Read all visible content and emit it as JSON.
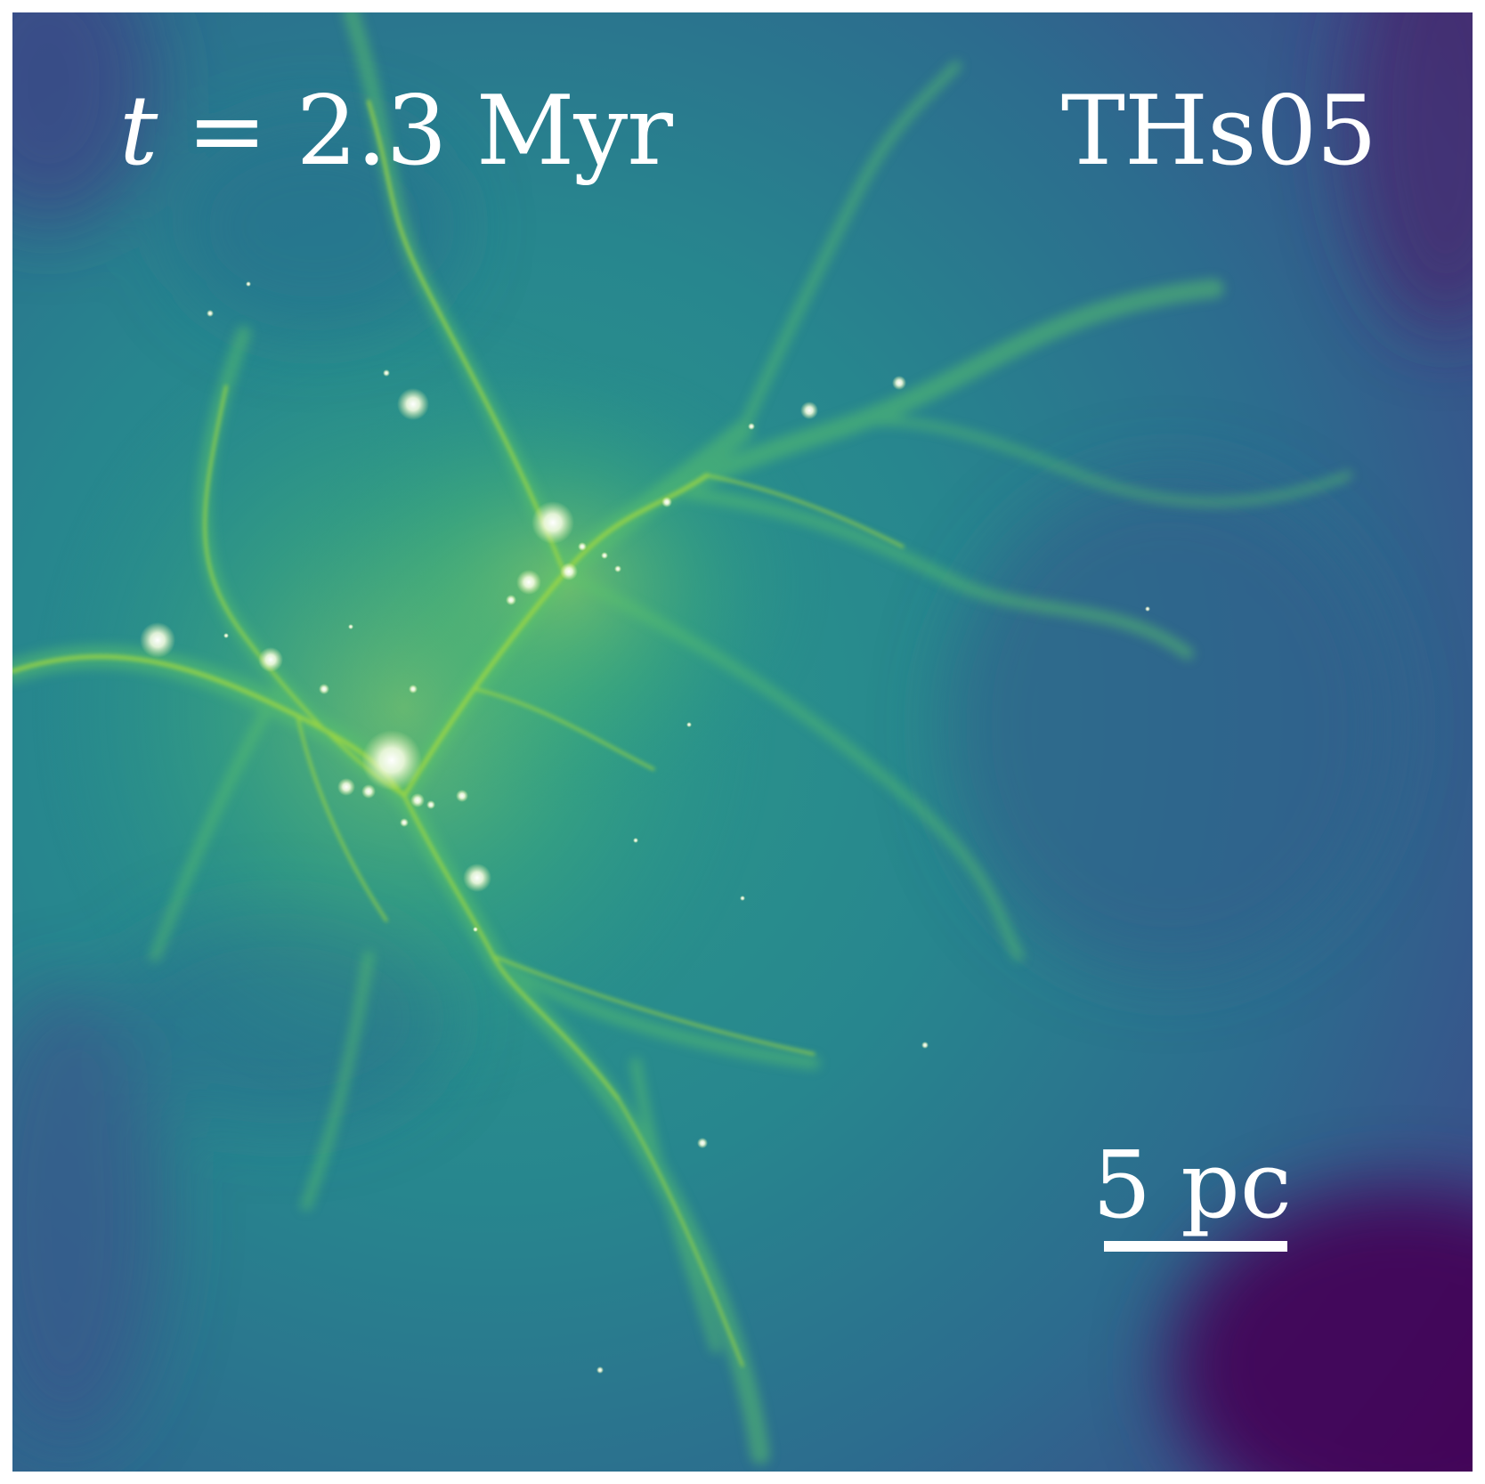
{
  "figure": {
    "time_label": {
      "variable": "t",
      "equals": "=",
      "value": "2.3",
      "unit": "Myr"
    },
    "simulation_label": "THs05",
    "scale_bar": {
      "value": "5",
      "unit": "pc"
    },
    "colormap": [
      "#440154",
      "#3b528b",
      "#21918c",
      "#5ec962",
      "#fde725"
    ]
  }
}
